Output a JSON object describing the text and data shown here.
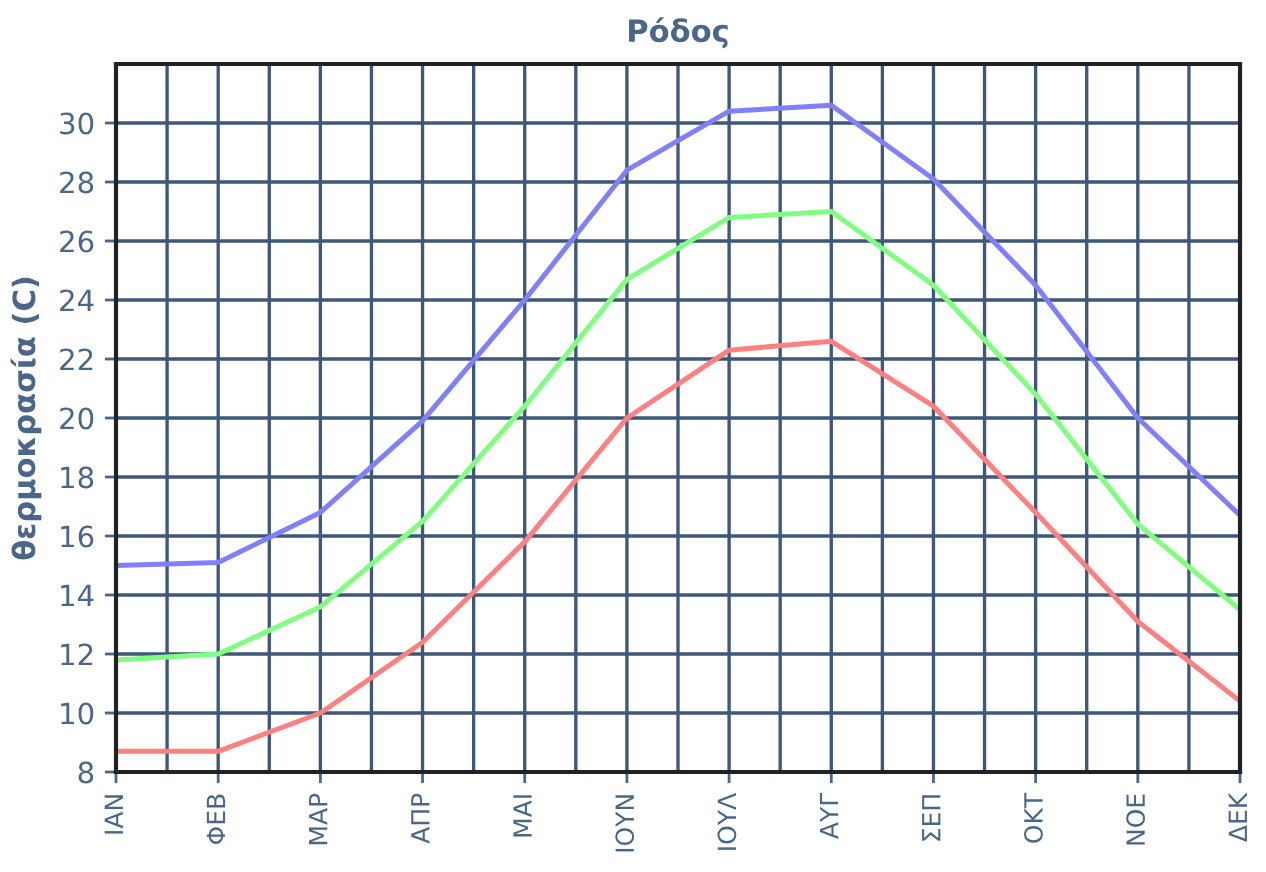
{
  "chart_data": {
    "type": "line",
    "title": "Ρόδος",
    "ylabel": "θερμοκρασία (C)",
    "categories": [
      "ΙΑΝ",
      "ΦΕΒ",
      "ΜΑΡ",
      "ΑΠΡ",
      "ΜΑΙ",
      "ΙΟΥΝ",
      "ΙΟΥΛ",
      "ΑΥΓ",
      "ΣΕΠ",
      "ΟΚΤ",
      "ΝΟΕ",
      "ΔΕΚ"
    ],
    "series": [
      {
        "color": "#8080ff",
        "values": [
          15.0,
          15.1,
          16.8,
          19.9,
          24.0,
          28.4,
          30.4,
          30.6,
          28.1,
          24.5,
          20.0,
          16.7
        ]
      },
      {
        "color": "#80ff80",
        "values": [
          11.8,
          12.0,
          13.6,
          16.5,
          20.4,
          24.7,
          26.8,
          27.0,
          24.5,
          20.8,
          16.4,
          13.5
        ]
      },
      {
        "color": "#ff8080",
        "values": [
          8.7,
          8.7,
          10.0,
          12.4,
          15.8,
          20.0,
          22.3,
          22.6,
          20.4,
          16.8,
          13.1,
          10.4
        ]
      }
    ],
    "ylim": [
      8,
      32
    ],
    "yticks": [
      8,
      10,
      12,
      14,
      16,
      18,
      20,
      22,
      24,
      26,
      28,
      30
    ],
    "grid": true,
    "marker": "none",
    "line_style": "solid"
  }
}
